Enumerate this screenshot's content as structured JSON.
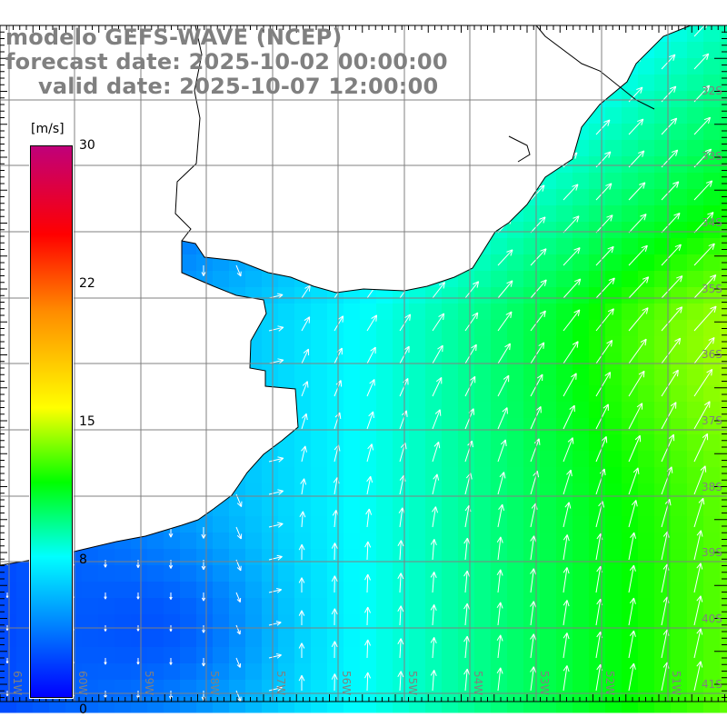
{
  "title": {
    "line1": "modelo GEFS-WAVE (NCEP)",
    "line2": "forecast date: 2025-10-02 00:00:00",
    "line3": "valid date: 2025-10-07 12:00:00"
  },
  "colorbar": {
    "unit": "[m/s]",
    "labels": [
      "30",
      "22",
      "15",
      "8",
      "0"
    ],
    "range": [
      0,
      30
    ],
    "colors": [
      "#0000ff",
      "#00ffff",
      "#00ff00",
      "#ffff00",
      "#ff8c00",
      "#ff0000",
      "#c0007a"
    ]
  },
  "axes": {
    "lon_labels": [
      "61W",
      "60W",
      "59W",
      "58W",
      "57W",
      "56W",
      "55W",
      "54W",
      "53W",
      "52W",
      "51W"
    ],
    "lat_labels": [
      "32S",
      "33S",
      "34S",
      "35S",
      "36S",
      "37S",
      "38S",
      "39S",
      "40S",
      "41S"
    ]
  },
  "colors": {
    "land": "#ffffff",
    "coast": "#000000",
    "grid": "#808080",
    "arrow": "#ffffff"
  }
}
